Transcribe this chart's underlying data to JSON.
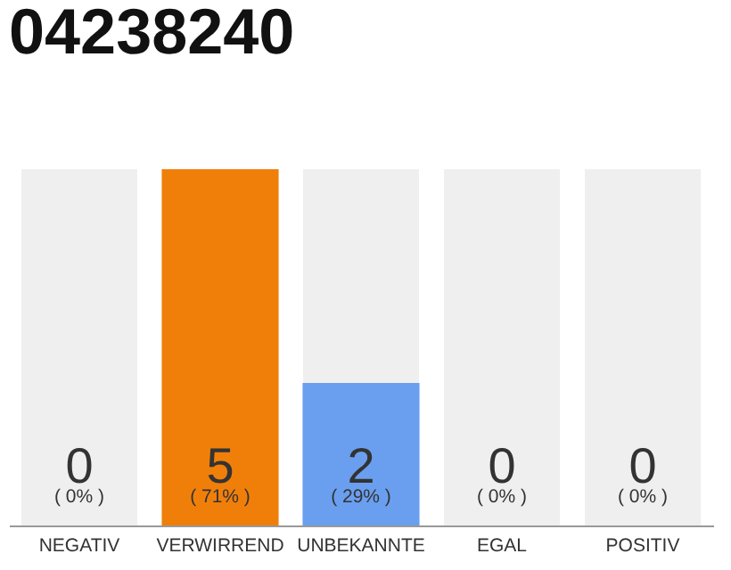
{
  "chart_data": {
    "type": "bar",
    "title": "04238240",
    "categories": [
      "NEGATIV",
      "VERWIRREND",
      "UNBEKANNTE",
      "EGAL",
      "POSITIV"
    ],
    "values": [
      0,
      5,
      2,
      0,
      0
    ],
    "colors": [
      "#bbbbbb",
      "#f07f0a",
      "#6a9fef",
      "#bbbbbb",
      "#bbbbbb"
    ],
    "ylim": [
      0,
      5
    ],
    "tick_labels": "x",
    "data_labels": true,
    "annotations": [
      "( 0% )",
      "( 71% )",
      "( 29% )",
      "( 0% )",
      "( 0% )"
    ]
  }
}
